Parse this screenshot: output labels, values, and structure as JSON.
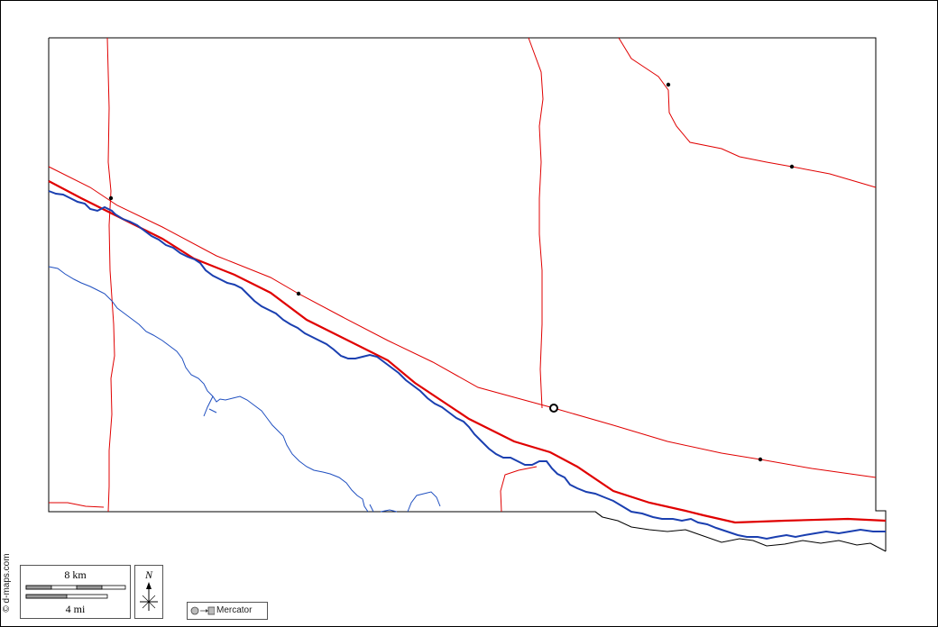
{
  "credit": "© d-maps.com",
  "scale": {
    "km_label": "8 km",
    "mi_label": "4 mi"
  },
  "compass": {
    "north_label": "N"
  },
  "projection": {
    "label": "Mercator"
  },
  "colors": {
    "boundary": "#e00000",
    "highway": "#e00000",
    "river": "#1a3fb0",
    "stream": "#1f4fc0",
    "outline": "#000000"
  },
  "legend_icons": [
    "compass-rose-icon",
    "projection-globe-icon",
    "projection-map-icon",
    "arrow-right-icon"
  ]
}
